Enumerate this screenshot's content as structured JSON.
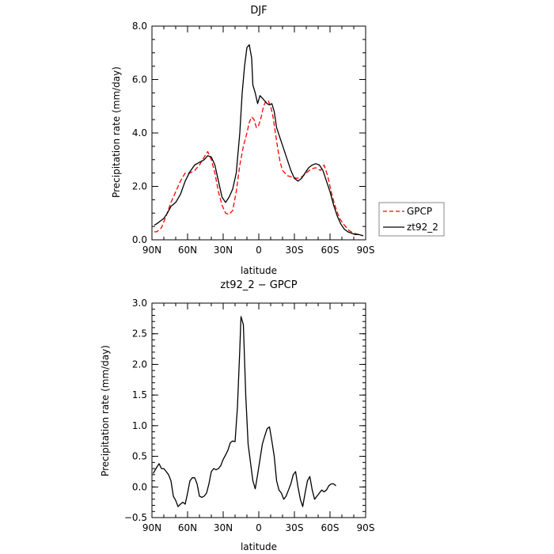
{
  "chart_data": [
    {
      "type": "line",
      "title": "DJF",
      "xlabel": "latitude",
      "ylabel": "Precipitation rate (mm/day)",
      "xlim": [
        90,
        -90
      ],
      "ylim": [
        0,
        8
      ],
      "xticks": [
        {
          "v": 90,
          "label": "90N"
        },
        {
          "v": 60,
          "label": "60N"
        },
        {
          "v": 30,
          "label": "30N"
        },
        {
          "v": 0,
          "label": "0"
        },
        {
          "v": -30,
          "label": "30S"
        },
        {
          "v": -60,
          "label": "60S"
        },
        {
          "v": -90,
          "label": "90S"
        }
      ],
      "yticks": [
        {
          "v": 0,
          "label": "0.0"
        },
        {
          "v": 2,
          "label": "2.0"
        },
        {
          "v": 4,
          "label": "4.0"
        },
        {
          "v": 6,
          "label": "6.0"
        },
        {
          "v": 8,
          "label": "8.0"
        }
      ],
      "grid": false,
      "legend": "right",
      "series": [
        {
          "name": "GPCP",
          "color": "#ff0000",
          "dash": "dashed",
          "points": [
            [
              88,
              0.3
            ],
            [
              86,
              0.3
            ],
            [
              82,
              0.45
            ],
            [
              78,
              0.9
            ],
            [
              74,
              1.4
            ],
            [
              70,
              1.8
            ],
            [
              66,
              2.2
            ],
            [
              62,
              2.5
            ],
            [
              58,
              2.5
            ],
            [
              54,
              2.6
            ],
            [
              50,
              2.8
            ],
            [
              46,
              3.1
            ],
            [
              43,
              3.3
            ],
            [
              40,
              3.0
            ],
            [
              37,
              2.5
            ],
            [
              34,
              1.8
            ],
            [
              31,
              1.3
            ],
            [
              28,
              1.0
            ],
            [
              25,
              0.95
            ],
            [
              22,
              1.1
            ],
            [
              19,
              1.8
            ],
            [
              16,
              2.8
            ],
            [
              13,
              3.5
            ],
            [
              10,
              4.0
            ],
            [
              8,
              4.4
            ],
            [
              6,
              4.6
            ],
            [
              4,
              4.5
            ],
            [
              2,
              4.2
            ],
            [
              0,
              4.3
            ],
            [
              -2,
              4.6
            ],
            [
              -4,
              5.0
            ],
            [
              -6,
              5.2
            ],
            [
              -8,
              5.2
            ],
            [
              -10,
              5.0
            ],
            [
              -12,
              4.6
            ],
            [
              -14,
              4.0
            ],
            [
              -16,
              3.4
            ],
            [
              -18,
              2.9
            ],
            [
              -20,
              2.6
            ],
            [
              -24,
              2.4
            ],
            [
              -28,
              2.35
            ],
            [
              -32,
              2.3
            ],
            [
              -36,
              2.35
            ],
            [
              -40,
              2.5
            ],
            [
              -44,
              2.65
            ],
            [
              -48,
              2.7
            ],
            [
              -52,
              2.6
            ],
            [
              -55,
              2.8
            ],
            [
              -58,
              2.4
            ],
            [
              -61,
              1.8
            ],
            [
              -64,
              1.3
            ],
            [
              -68,
              0.8
            ],
            [
              -72,
              0.55
            ],
            [
              -76,
              0.35
            ],
            [
              -80,
              0.25
            ],
            [
              -84,
              0.2
            ],
            [
              -88,
              0.15
            ]
          ]
        },
        {
          "name": "zt92_2",
          "color": "#000000",
          "dash": "solid",
          "points": [
            [
              88,
              0.55
            ],
            [
              86,
              0.6
            ],
            [
              83,
              0.7
            ],
            [
              80,
              0.8
            ],
            [
              77,
              1.0
            ],
            [
              74,
              1.25
            ],
            [
              70,
              1.4
            ],
            [
              66,
              1.7
            ],
            [
              62,
              2.2
            ],
            [
              58,
              2.55
            ],
            [
              54,
              2.8
            ],
            [
              50,
              2.9
            ],
            [
              46,
              3.0
            ],
            [
              43,
              3.15
            ],
            [
              40,
              3.1
            ],
            [
              37,
              2.8
            ],
            [
              34,
              2.2
            ],
            [
              31,
              1.6
            ],
            [
              28,
              1.4
            ],
            [
              25,
              1.6
            ],
            [
              22,
              1.9
            ],
            [
              19,
              2.5
            ],
            [
              16,
              4.0
            ],
            [
              14,
              5.5
            ],
            [
              12,
              6.5
            ],
            [
              10,
              7.2
            ],
            [
              8,
              7.3
            ],
            [
              6,
              6.8
            ],
            [
              5,
              5.8
            ],
            [
              3,
              5.5
            ],
            [
              1,
              5.1
            ],
            [
              -1,
              5.4
            ],
            [
              -3,
              5.3
            ],
            [
              -5,
              5.2
            ],
            [
              -7,
              5.1
            ],
            [
              -9,
              5.05
            ],
            [
              -11,
              5.1
            ],
            [
              -13,
              4.8
            ],
            [
              -15,
              4.2
            ],
            [
              -18,
              3.8
            ],
            [
              -21,
              3.4
            ],
            [
              -24,
              3.0
            ],
            [
              -27,
              2.6
            ],
            [
              -30,
              2.3
            ],
            [
              -33,
              2.2
            ],
            [
              -36,
              2.3
            ],
            [
              -39,
              2.5
            ],
            [
              -42,
              2.7
            ],
            [
              -45,
              2.8
            ],
            [
              -48,
              2.85
            ],
            [
              -51,
              2.8
            ],
            [
              -54,
              2.6
            ],
            [
              -57,
              2.2
            ],
            [
              -60,
              1.8
            ],
            [
              -63,
              1.3
            ],
            [
              -66,
              0.9
            ],
            [
              -69,
              0.6
            ],
            [
              -72,
              0.4
            ],
            [
              -75,
              0.3
            ],
            [
              -78,
              0.25
            ],
            [
              -81,
              0.2
            ],
            [
              -84,
              0.2
            ],
            [
              -88,
              0.15
            ]
          ]
        }
      ]
    },
    {
      "type": "line",
      "title": "zt92_2 − GPCP",
      "xlabel": "latitude",
      "ylabel": "Precipitation rate (mm/day)",
      "xlim": [
        90,
        -90
      ],
      "ylim": [
        -0.5,
        3.0
      ],
      "xticks": [
        {
          "v": 90,
          "label": "90N"
        },
        {
          "v": 60,
          "label": "60N"
        },
        {
          "v": 30,
          "label": "30N"
        },
        {
          "v": 0,
          "label": "0"
        },
        {
          "v": -30,
          "label": "30S"
        },
        {
          "v": -60,
          "label": "60S"
        },
        {
          "v": -90,
          "label": "90S"
        }
      ],
      "yticks": [
        {
          "v": -0.5,
          "label": "−0.5"
        },
        {
          "v": 0,
          "label": "0.0"
        },
        {
          "v": 0.5,
          "label": "0.5"
        },
        {
          "v": 1.0,
          "label": "1.0"
        },
        {
          "v": 1.5,
          "label": "1.5"
        },
        {
          "v": 2.0,
          "label": "2.0"
        },
        {
          "v": 2.5,
          "label": "2.5"
        },
        {
          "v": 3.0,
          "label": "3.0"
        }
      ],
      "grid": false,
      "series": [
        {
          "color": "#000000",
          "dash": "solid",
          "points": [
            [
              89,
              0.22
            ],
            [
              86,
              0.32
            ],
            [
              84,
              0.38
            ],
            [
              82,
              0.3
            ],
            [
              80,
              0.3
            ],
            [
              78,
              0.25
            ],
            [
              76,
              0.2
            ],
            [
              74,
              0.1
            ],
            [
              72,
              -0.15
            ],
            [
              70,
              -0.22
            ],
            [
              68,
              -0.32
            ],
            [
              66,
              -0.28
            ],
            [
              64,
              -0.25
            ],
            [
              62,
              -0.28
            ],
            [
              60,
              -0.1
            ],
            [
              58,
              0.1
            ],
            [
              56,
              0.15
            ],
            [
              54,
              0.15
            ],
            [
              52,
              0.05
            ],
            [
              50,
              -0.15
            ],
            [
              48,
              -0.17
            ],
            [
              46,
              -0.15
            ],
            [
              44,
              -0.1
            ],
            [
              42,
              0.05
            ],
            [
              40,
              0.25
            ],
            [
              38,
              0.3
            ],
            [
              36,
              0.28
            ],
            [
              34,
              0.3
            ],
            [
              32,
              0.35
            ],
            [
              30,
              0.45
            ],
            [
              28,
              0.52
            ],
            [
              26,
              0.6
            ],
            [
              24,
              0.72
            ],
            [
              22,
              0.75
            ],
            [
              20,
              0.74
            ],
            [
              18,
              1.3
            ],
            [
              16,
              2.25
            ],
            [
              15,
              2.78
            ],
            [
              13,
              2.65
            ],
            [
              11,
              1.5
            ],
            [
              9,
              0.7
            ],
            [
              7,
              0.4
            ],
            [
              5,
              0.1
            ],
            [
              3,
              -0.03
            ],
            [
              1,
              0.2
            ],
            [
              -1,
              0.45
            ],
            [
              -3,
              0.7
            ],
            [
              -5,
              0.83
            ],
            [
              -7,
              0.95
            ],
            [
              -9,
              0.98
            ],
            [
              -11,
              0.75
            ],
            [
              -13,
              0.5
            ],
            [
              -15,
              0.1
            ],
            [
              -17,
              -0.05
            ],
            [
              -19,
              -0.1
            ],
            [
              -21,
              -0.2
            ],
            [
              -23,
              -0.15
            ],
            [
              -25,
              -0.05
            ],
            [
              -27,
              0.05
            ],
            [
              -29,
              0.2
            ],
            [
              -31,
              0.25
            ],
            [
              -33,
              0.0
            ],
            [
              -35,
              -0.2
            ],
            [
              -37,
              -0.32
            ],
            [
              -39,
              -0.1
            ],
            [
              -41,
              0.1
            ],
            [
              -43,
              0.17
            ],
            [
              -45,
              -0.05
            ],
            [
              -47,
              -0.2
            ],
            [
              -49,
              -0.15
            ],
            [
              -51,
              -0.1
            ],
            [
              -53,
              -0.05
            ],
            [
              -55,
              -0.08
            ],
            [
              -57,
              -0.05
            ],
            [
              -59,
              0.02
            ],
            [
              -61,
              0.05
            ],
            [
              -63,
              0.05
            ],
            [
              -65,
              0.02
            ]
          ]
        }
      ]
    }
  ]
}
